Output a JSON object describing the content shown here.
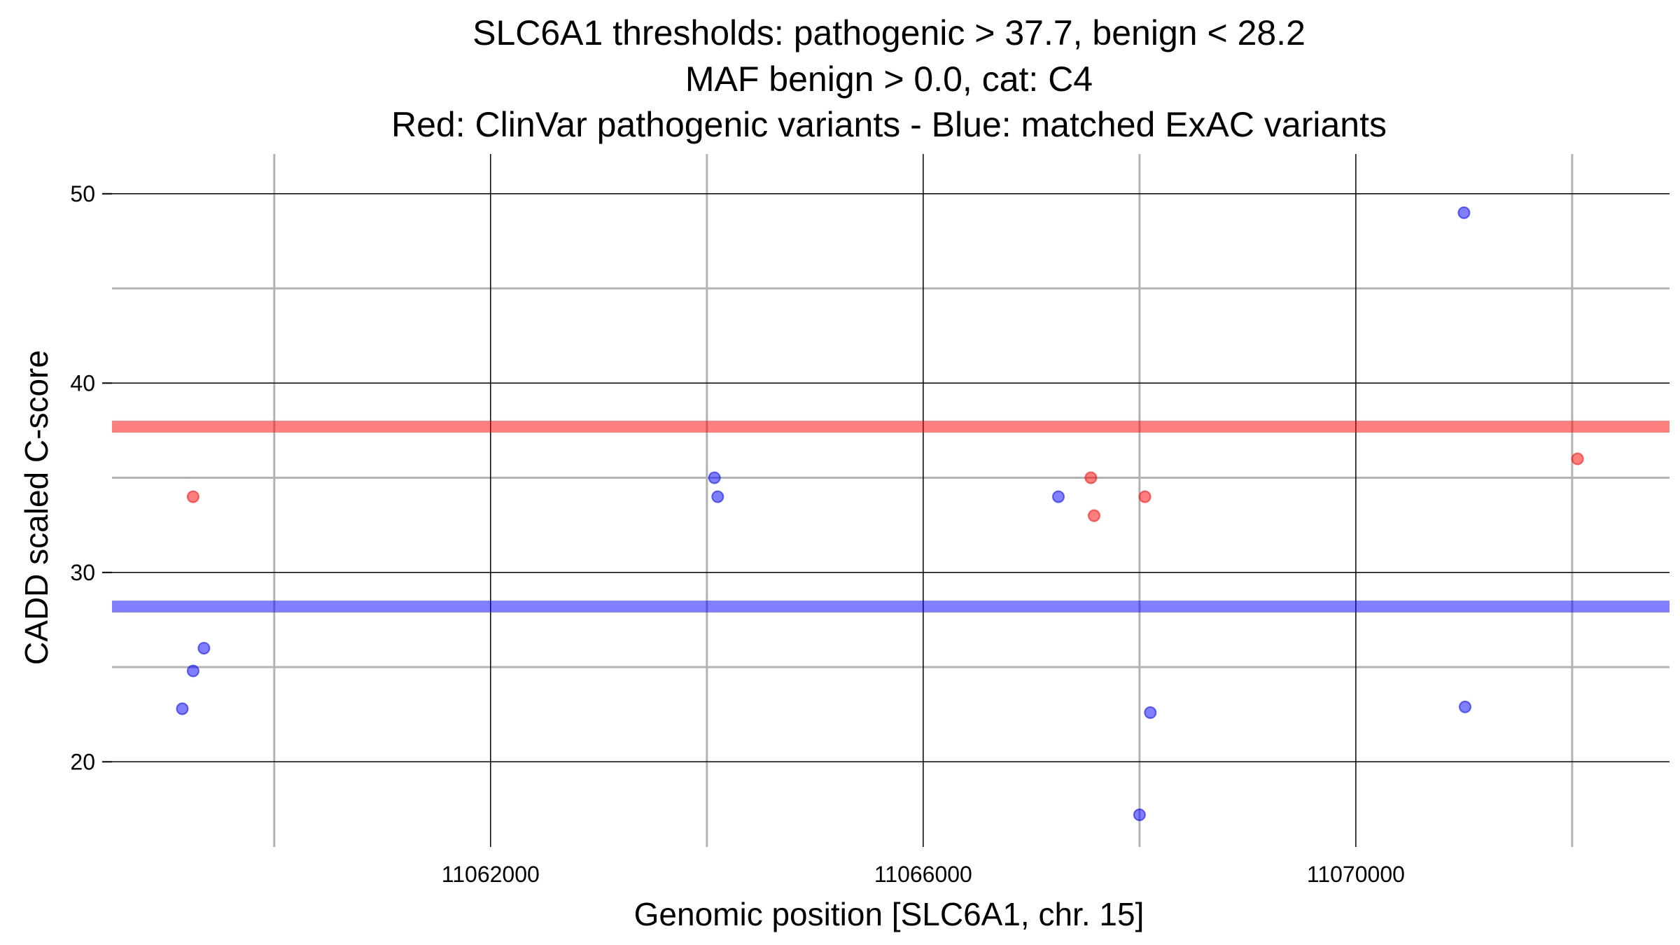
{
  "chart_data": {
    "type": "scatter",
    "title": [
      "SLC6A1 thresholds: pathogenic > 37.7, benign < 28.2",
      "MAF benign > 0.0, cat: C4",
      "Red: ClinVar pathogenic variants - Blue: matched ExAC variants"
    ],
    "xlabel": "Genomic position [SLC6A1, chr. 15]",
    "ylabel": "CADD scaled C-score",
    "xlim": [
      11058500,
      11072900
    ],
    "ylim": [
      15.5,
      52.1
    ],
    "xticks": [
      11062000,
      11066000,
      11070000
    ],
    "xtick_labels": [
      "11062000",
      "11066000",
      "11070000"
    ],
    "x_minor_gridlines": [
      11060000,
      11064000,
      11068000,
      11072000
    ],
    "yticks": [
      20,
      30,
      40,
      50
    ],
    "ytick_labels": [
      "20",
      "30",
      "40",
      "50"
    ],
    "y_minor_gridlines": [
      25,
      35,
      45
    ],
    "grid": true,
    "thresholds": [
      {
        "name": "pathogenic",
        "value": 37.7,
        "color": "#ff0000"
      },
      {
        "name": "benign",
        "value": 28.2,
        "color": "#0000ff"
      }
    ],
    "series": [
      {
        "name": "ClinVar pathogenic variants",
        "color": "#ff0000",
        "points": [
          {
            "x": 11059250,
            "y": 34
          },
          {
            "x": 11067550,
            "y": 35
          },
          {
            "x": 11067580,
            "y": 33
          },
          {
            "x": 11068050,
            "y": 34
          },
          {
            "x": 11072050,
            "y": 36
          }
        ]
      },
      {
        "name": "matched ExAC variants",
        "color": "#0000ff",
        "points": [
          {
            "x": 11059150,
            "y": 22.8
          },
          {
            "x": 11059250,
            "y": 24.8
          },
          {
            "x": 11059350,
            "y": 26
          },
          {
            "x": 11064070,
            "y": 35
          },
          {
            "x": 11064100,
            "y": 34
          },
          {
            "x": 11067250,
            "y": 34
          },
          {
            "x": 11068000,
            "y": 17.2
          },
          {
            "x": 11068100,
            "y": 22.6
          },
          {
            "x": 11071000,
            "y": 49
          },
          {
            "x": 11071010,
            "y": 22.9
          }
        ]
      }
    ]
  }
}
